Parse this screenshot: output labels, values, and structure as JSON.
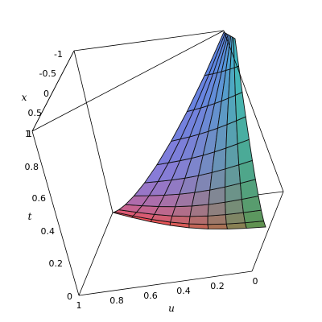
{
  "chart_data": {
    "type": "surface3d",
    "title": "",
    "axes": {
      "u": {
        "label": "u",
        "range": [
          0,
          1
        ],
        "ticks": [
          "0",
          "0.2",
          "0.4",
          "0.6",
          "0.8",
          "1"
        ]
      },
      "t": {
        "label": "t",
        "range": [
          0,
          1
        ],
        "ticks": [
          "0",
          "0.2",
          "0.4",
          "0.6",
          "0.8",
          "1"
        ]
      },
      "x": {
        "label": "x",
        "range": [
          -1,
          1
        ],
        "ticks": [
          "1",
          "0.5",
          "0",
          "-0.5",
          "-1"
        ]
      }
    },
    "grid": false,
    "box": true,
    "surface": {
      "description_colors": [
        "#ff4a4a",
        "#c46fa5",
        "#8d7bd6",
        "#5a86e6",
        "#3cc4c4",
        "#4a9a4a"
      ],
      "mesh": true
    }
  }
}
